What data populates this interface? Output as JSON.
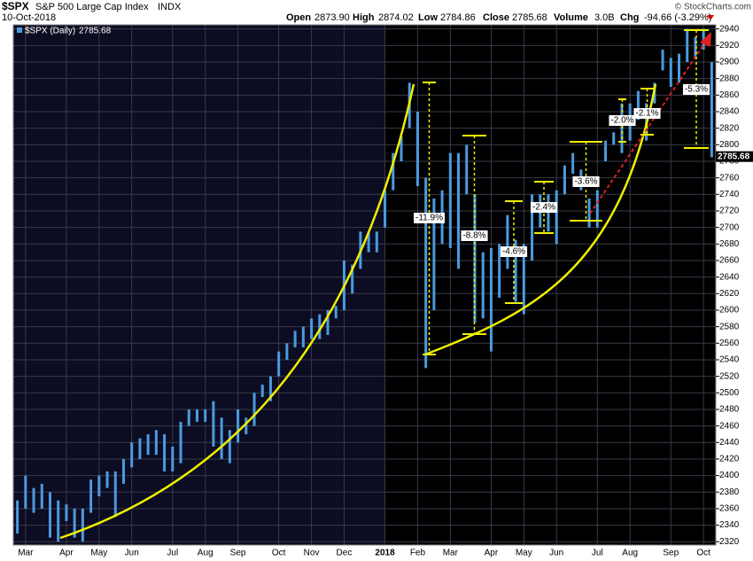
{
  "header": {
    "symbol": "$SPX",
    "name": "S&P 500 Large Cap Index",
    "exchange": "INDX",
    "date": "10-Oct-2018",
    "open_label": "Open",
    "open": "2873.90",
    "high_label": "High",
    "high": "2874.02",
    "low_label": "Low",
    "low": "2784.86",
    "close_label": "Close",
    "close": "2785.68",
    "volume_label": "Volume",
    "volume": "3.0B",
    "chg_label": "Chg",
    "chg": "-94.66 (-3.29%)",
    "credit": "© StockCharts.com"
  },
  "chart_data": {
    "type": "hl-bars",
    "categories": [
      null,
      "Mar",
      null,
      null,
      null,
      null,
      "Apr",
      null,
      null,
      null,
      "May",
      null,
      null,
      null,
      "Jun",
      null,
      null,
      null,
      null,
      "Jul",
      null,
      null,
      null,
      "Aug",
      null,
      null,
      null,
      "Sep",
      null,
      null,
      null,
      null,
      "Oct",
      null,
      null,
      null,
      "Nov",
      null,
      null,
      null,
      "Dec",
      null,
      null,
      null,
      null,
      "2018",
      null,
      null,
      null,
      "Feb",
      null,
      null,
      null,
      "Mar",
      null,
      null,
      null,
      null,
      "Apr",
      null,
      null,
      null,
      "May",
      null,
      null,
      null,
      "Jun",
      null,
      null,
      null,
      null,
      "Jul",
      null,
      null,
      null,
      "Aug",
      null,
      null,
      null,
      null,
      "Sep",
      null,
      null,
      null,
      "Oct",
      null
    ],
    "series": [
      {
        "name": "$SPX (Daily)",
        "color": "#4a9be0",
        "high": [
          2370,
          2400,
          2385,
          2390,
          2380,
          2370,
          2365,
          2360,
          2360,
          2395,
          2400,
          2405,
          2405,
          2420,
          2440,
          2445,
          2450,
          2455,
          2450,
          2435,
          2465,
          2480,
          2480,
          2480,
          2490,
          2470,
          2455,
          2480,
          2470,
          2500,
          2510,
          2520,
          2550,
          2560,
          2575,
          2580,
          2590,
          2595,
          2600,
          2605,
          2660,
          2655,
          2695,
          2695,
          2695,
          2745,
          2790,
          2810,
          2875,
          2840,
          2760,
          2735,
          2745,
          2790,
          2790,
          2800,
          2740,
          2670,
          2675,
          2680,
          2715,
          2685,
          2680,
          2740,
          2740,
          2740,
          2745,
          2775,
          2790,
          2770,
          2735,
          2745,
          2805,
          2815,
          2850,
          2850,
          2865,
          2850,
          2875,
          2915,
          2905,
          2910,
          2940,
          2930,
          2940,
          2900
        ],
        "low": [
          2330,
          2360,
          2355,
          2360,
          2325,
          2320,
          2345,
          2325,
          2320,
          2355,
          2375,
          2385,
          2350,
          2390,
          2410,
          2420,
          2425,
          2425,
          2405,
          2405,
          2415,
          2460,
          2465,
          2465,
          2435,
          2420,
          2415,
          2440,
          2450,
          2460,
          2495,
          2490,
          2520,
          2540,
          2555,
          2555,
          2565,
          2565,
          2570,
          2590,
          2600,
          2620,
          2650,
          2670,
          2670,
          2700,
          2745,
          2780,
          2820,
          2750,
          2530,
          2600,
          2680,
          2675,
          2650,
          2740,
          2585,
          2590,
          2550,
          2615,
          2650,
          2610,
          2595,
          2660,
          2700,
          2695,
          2680,
          2740,
          2765,
          2745,
          2700,
          2700,
          2780,
          2800,
          2790,
          2805,
          2830,
          2805,
          2850,
          2890,
          2870,
          2875,
          2900,
          2905,
          2915,
          2784.86
        ]
      }
    ],
    "last_price": {
      "value": 2785.68,
      "label": "2785.68"
    },
    "ylim": [
      2316,
      2945
    ],
    "yticks": [
      2320,
      2340,
      2360,
      2380,
      2400,
      2420,
      2440,
      2460,
      2480,
      2500,
      2520,
      2540,
      2560,
      2580,
      2600,
      2620,
      2640,
      2660,
      2680,
      2700,
      2720,
      2740,
      2760,
      2780,
      2800,
      2820,
      2840,
      2860,
      2880,
      2900,
      2920,
      2940
    ],
    "grid": true,
    "annotations": [
      "-11.9%",
      "-8.8%",
      "-4.6%",
      "-2.4%",
      "-3.6%",
      "-2.0%",
      "-2.1%",
      "-5.3%"
    ]
  }
}
